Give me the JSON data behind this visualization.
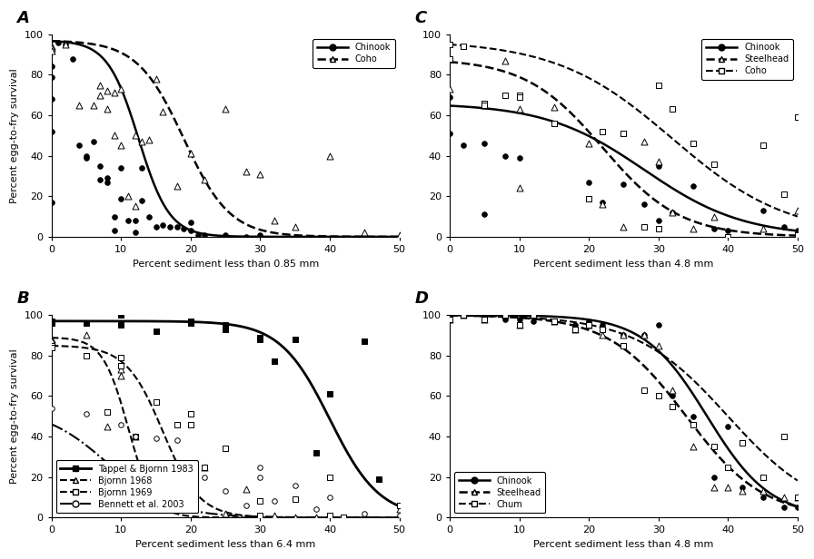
{
  "panel_A": {
    "label": "A",
    "xlabel": "Percent sediment less than 0.85 mm",
    "ylabel": "Percent egg-to-fry survival",
    "xlim": [
      0,
      50
    ],
    "ylim": [
      0,
      100
    ],
    "yticks": [
      0,
      20,
      40,
      60,
      80,
      100
    ],
    "xticks": [
      0,
      10,
      20,
      30,
      40,
      50
    ],
    "legend_loc": "upper right",
    "series": [
      {
        "name": "Chinook",
        "marker": "o",
        "marker_fill": "black",
        "linestyle": "-",
        "linewidth": 1.8,
        "markersize": 4,
        "scatter_x": [
          0,
          0,
          0,
          0,
          0,
          1,
          2,
          3,
          4,
          5,
          5,
          6,
          7,
          7,
          8,
          8,
          9,
          9,
          10,
          10,
          11,
          12,
          12,
          13,
          13,
          14,
          15,
          16,
          17,
          18,
          19,
          20,
          20,
          21,
          22,
          25,
          28,
          30
        ],
        "scatter_y": [
          84,
          79,
          68,
          52,
          17,
          96,
          95,
          88,
          45,
          40,
          39,
          47,
          35,
          28,
          29,
          27,
          10,
          3,
          34,
          19,
          8,
          8,
          2,
          34,
          18,
          10,
          5,
          6,
          5,
          5,
          4,
          7,
          3,
          1,
          1,
          1,
          0,
          1
        ],
        "curve_x0": 12.5,
        "curve_k": 0.45,
        "curve_ymax": 97
      },
      {
        "name": "Coho",
        "marker": "^",
        "marker_fill": "none",
        "linestyle": "--",
        "linewidth": 1.8,
        "markersize": 5,
        "scatter_x": [
          0,
          0,
          0,
          2,
          4,
          6,
          7,
          7,
          8,
          8,
          9,
          9,
          10,
          10,
          11,
          12,
          12,
          13,
          14,
          15,
          16,
          18,
          20,
          22,
          25,
          28,
          30,
          32,
          35,
          40,
          45,
          50
        ],
        "scatter_y": [
          94,
          93,
          92,
          95,
          65,
          65,
          75,
          70,
          72,
          63,
          71,
          50,
          73,
          45,
          20,
          15,
          50,
          47,
          48,
          78,
          62,
          25,
          41,
          28,
          63,
          32,
          31,
          8,
          5,
          40,
          2,
          1
        ],
        "curve_x0": 19,
        "curve_k": 0.3,
        "curve_ymax": 97
      }
    ]
  },
  "panel_B": {
    "label": "B",
    "xlabel": "Percent sediment less than 6.4 mm",
    "ylabel": "Percent egg-to-fry survival",
    "xlim": [
      0,
      50
    ],
    "ylim": [
      0,
      100
    ],
    "yticks": [
      0,
      20,
      40,
      60,
      80,
      100
    ],
    "xticks": [
      0,
      10,
      20,
      30,
      40,
      50
    ],
    "legend_loc": "lower left",
    "series": [
      {
        "name": "Tappel & Bjornn 1983",
        "marker": "s",
        "marker_fill": "black",
        "linestyle": "-",
        "linewidth": 2.0,
        "markersize": 5,
        "scatter_x": [
          0,
          0,
          5,
          10,
          10,
          15,
          20,
          20,
          25,
          25,
          30,
          30,
          32,
          35,
          38,
          40,
          45,
          47,
          50
        ],
        "scatter_y": [
          97,
          96,
          96,
          100,
          95,
          92,
          97,
          96,
          95,
          93,
          89,
          88,
          77,
          88,
          32,
          61,
          87,
          19,
          6
        ],
        "curve_x0": 40,
        "curve_k": 0.28,
        "curve_ymax": 97
      },
      {
        "name": "Bjornn 1968",
        "marker": "^",
        "marker_fill": "none",
        "linestyle": "--",
        "linewidth": 1.5,
        "markersize": 5,
        "scatter_x": [
          0,
          0,
          5,
          8,
          10,
          10,
          12,
          15,
          18,
          22,
          25,
          28,
          30,
          32,
          35,
          38,
          40,
          50
        ],
        "scatter_y": [
          88,
          87,
          90,
          45,
          73,
          70,
          40,
          15,
          4,
          25,
          2,
          14,
          0,
          1,
          0,
          0,
          0,
          4
        ],
        "curve_x0": 11,
        "curve_k": 0.55,
        "curve_ymax": 89
      },
      {
        "name": "Bjornn 1969",
        "marker": "s",
        "marker_fill": "none",
        "linestyle": "--",
        "linewidth": 1.5,
        "markersize": 5,
        "scatter_x": [
          0,
          0,
          5,
          8,
          10,
          10,
          12,
          15,
          18,
          20,
          20,
          22,
          25,
          30,
          30,
          35,
          40,
          40,
          42,
          50
        ],
        "scatter_y": [
          85,
          84,
          80,
          52,
          75,
          79,
          40,
          57,
          46,
          46,
          51,
          25,
          34,
          1,
          8,
          9,
          20,
          1,
          0,
          6
        ],
        "curve_x0": 16,
        "curve_k": 0.38,
        "curve_ymax": 85
      },
      {
        "name": "Bennett et al. 2003",
        "marker": "o",
        "marker_fill": "none",
        "linestyle": "-.",
        "linewidth": 1.5,
        "markersize": 4,
        "scatter_x": [
          0,
          5,
          10,
          12,
          15,
          18,
          20,
          22,
          25,
          28,
          30,
          30,
          32,
          35,
          38,
          40,
          45,
          50
        ],
        "scatter_y": [
          54,
          51,
          46,
          40,
          39,
          38,
          25,
          20,
          13,
          6,
          25,
          20,
          8,
          16,
          4,
          10,
          2,
          1
        ],
        "curve_x0": 8,
        "curve_k": 0.22,
        "curve_ymax": 54
      }
    ]
  },
  "panel_C": {
    "label": "C",
    "xlabel": "Percent sediment less than 4.8 mm",
    "ylabel": "",
    "xlim": [
      0,
      50
    ],
    "ylim": [
      0,
      100
    ],
    "yticks": [
      0,
      20,
      40,
      60,
      80,
      100
    ],
    "xticks": [
      0,
      10,
      20,
      30,
      40,
      50
    ],
    "legend_loc": "upper right",
    "series": [
      {
        "name": "Chinook",
        "marker": "o",
        "marker_fill": "black",
        "linestyle": "-",
        "linewidth": 1.8,
        "markersize": 4,
        "scatter_x": [
          0,
          0,
          2,
          5,
          5,
          8,
          10,
          20,
          22,
          25,
          28,
          30,
          30,
          32,
          35,
          38,
          40,
          45,
          48,
          50
        ],
        "scatter_y": [
          69,
          51,
          45,
          46,
          11,
          40,
          39,
          27,
          17,
          26,
          16,
          35,
          8,
          12,
          25,
          4,
          3,
          13,
          5,
          3
        ],
        "curve_x0": 28,
        "curve_k": 0.14,
        "curve_ymax": 66
      },
      {
        "name": "Steelhead",
        "marker": "^",
        "marker_fill": "none",
        "linestyle": "--",
        "linewidth": 1.8,
        "markersize": 5,
        "scatter_x": [
          0,
          0,
          5,
          8,
          10,
          10,
          15,
          20,
          22,
          25,
          28,
          30,
          32,
          35,
          38,
          40,
          45,
          50
        ],
        "scatter_y": [
          88,
          73,
          65,
          87,
          63,
          24,
          64,
          46,
          16,
          5,
          47,
          37,
          12,
          4,
          10,
          1,
          4,
          13
        ],
        "curve_x0": 22,
        "curve_k": 0.18,
        "curve_ymax": 88
      },
      {
        "name": "Coho",
        "marker": "s",
        "marker_fill": "none",
        "linestyle": "--",
        "linewidth": 1.5,
        "markersize": 5,
        "scatter_x": [
          0,
          0,
          2,
          5,
          5,
          8,
          10,
          10,
          15,
          20,
          22,
          25,
          28,
          30,
          30,
          32,
          35,
          38,
          40,
          45,
          48,
          50,
          50
        ],
        "scatter_y": [
          95,
          88,
          94,
          66,
          65,
          70,
          70,
          69,
          56,
          19,
          52,
          51,
          5,
          75,
          4,
          63,
          46,
          36,
          0,
          45,
          21,
          1,
          59
        ],
        "curve_x0": 32,
        "curve_k": 0.12,
        "curve_ymax": 97
      }
    ]
  },
  "panel_D": {
    "label": "D",
    "xlabel": "Percent sediment less than 4.8 mm",
    "ylabel": "",
    "xlim": [
      0,
      50
    ],
    "ylim": [
      0,
      100
    ],
    "yticks": [
      0,
      20,
      40,
      60,
      80,
      100
    ],
    "xticks": [
      0,
      10,
      20,
      30,
      40,
      50
    ],
    "legend_loc": "lower left",
    "series": [
      {
        "name": "Chinook",
        "marker": "o",
        "marker_fill": "black",
        "linestyle": "-",
        "linewidth": 1.8,
        "markersize": 4,
        "scatter_x": [
          0,
          2,
          5,
          8,
          10,
          12,
          15,
          18,
          20,
          22,
          25,
          28,
          30,
          32,
          35,
          38,
          40,
          42,
          45,
          48,
          50
        ],
        "scatter_y": [
          100,
          100,
          99,
          98,
          98,
          97,
          97,
          95,
          97,
          95,
          90,
          90,
          95,
          60,
          50,
          20,
          45,
          15,
          10,
          5,
          5
        ],
        "curve_x0": 37,
        "curve_k": 0.22,
        "curve_ymax": 100
      },
      {
        "name": "Steelhead",
        "marker": "^",
        "marker_fill": "none",
        "linestyle": "--",
        "linewidth": 1.8,
        "markersize": 5,
        "scatter_x": [
          0,
          2,
          5,
          8,
          10,
          12,
          15,
          18,
          20,
          22,
          25,
          28,
          30,
          32,
          35,
          38,
          40,
          42,
          45,
          48,
          50
        ],
        "scatter_y": [
          98,
          100,
          98,
          100,
          95,
          100,
          97,
          93,
          95,
          90,
          90,
          90,
          85,
          63,
          35,
          15,
          15,
          13,
          13,
          10,
          10
        ],
        "curve_x0": 34,
        "curve_k": 0.18,
        "curve_ymax": 100
      },
      {
        "name": "Chum",
        "marker": "s",
        "marker_fill": "none",
        "linestyle": "--",
        "linewidth": 1.5,
        "markersize": 5,
        "scatter_x": [
          0,
          2,
          5,
          8,
          10,
          12,
          15,
          18,
          20,
          22,
          25,
          28,
          30,
          32,
          35,
          38,
          40,
          42,
          45,
          48,
          50
        ],
        "scatter_y": [
          98,
          100,
          98,
          100,
          95,
          100,
          97,
          93,
          95,
          93,
          85,
          63,
          60,
          55,
          46,
          35,
          25,
          37,
          20,
          40,
          10
        ],
        "curve_x0": 40,
        "curve_k": 0.15,
        "curve_ymax": 100
      }
    ]
  }
}
